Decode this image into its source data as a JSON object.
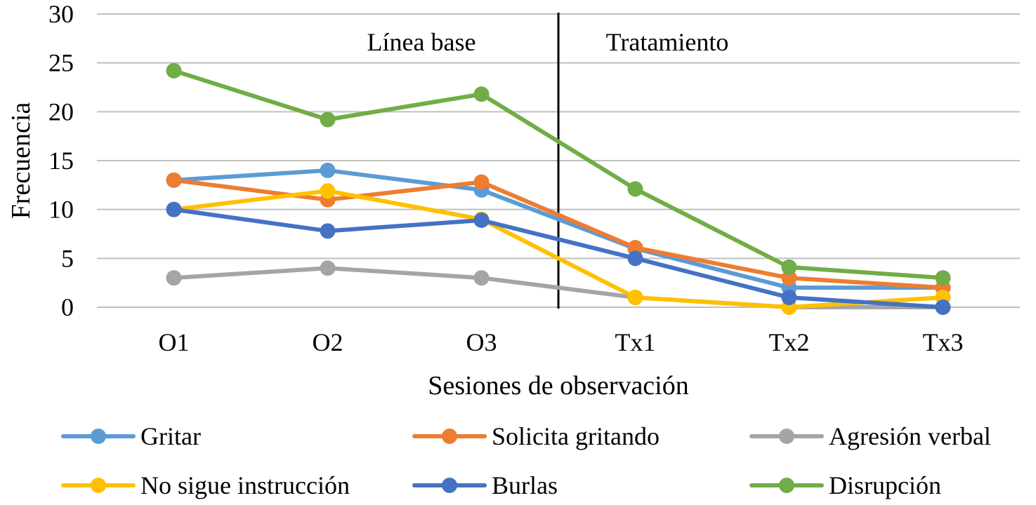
{
  "chart_data": {
    "type": "line",
    "title": "",
    "xlabel": "Sesiones de observación",
    "ylabel": "Frecuencia",
    "categories": [
      "O1",
      "O2",
      "O3",
      "Tx1",
      "Tx2",
      "Tx3"
    ],
    "ylim": [
      0,
      30
    ],
    "yticks": [
      0,
      5,
      10,
      15,
      20,
      25,
      30
    ],
    "grid": true,
    "legend_position": "bottom",
    "phase_divider_after": "O3",
    "phase_labels": {
      "baseline": "Línea base",
      "treatment": "Tratamiento"
    },
    "series": [
      {
        "name": "Gritar",
        "color": "#5B9BD5",
        "values": [
          13,
          14,
          12,
          6,
          2,
          2
        ]
      },
      {
        "name": "Solicita gritando",
        "color": "#ED7D31",
        "values": [
          13,
          11,
          12.8,
          6.1,
          3,
          2
        ]
      },
      {
        "name": "Agresión verbal",
        "color": "#A5A5A5",
        "values": [
          3,
          4,
          3,
          1,
          0,
          0
        ]
      },
      {
        "name": "No sigue instrucción",
        "color": "#FFC000",
        "values": [
          10,
          11.9,
          9,
          1,
          0,
          1
        ]
      },
      {
        "name": "Burlas",
        "color": "#4472C4",
        "values": [
          10,
          7.8,
          8.9,
          5,
          1,
          0
        ]
      },
      {
        "name": "Disrupción",
        "color": "#70AD47",
        "values": [
          24.2,
          19.2,
          21.8,
          12.1,
          4.1,
          3
        ]
      }
    ]
  }
}
